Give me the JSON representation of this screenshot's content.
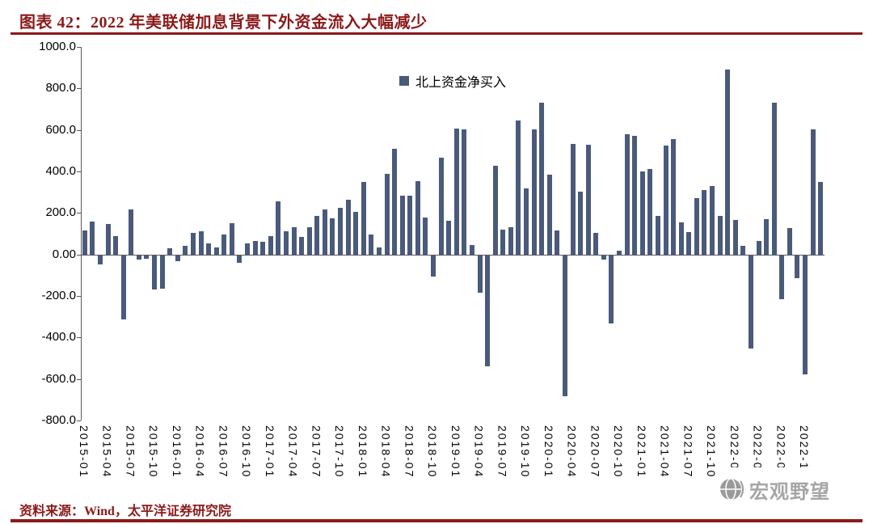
{
  "page": {
    "title": "图表 42：2022 年美联储加息背景下外资金流入大幅减少",
    "source": "资料来源：Wind，太平洋证券研究院",
    "watermark": "宏观野望"
  },
  "legend": {
    "label": "北上资金净买入"
  },
  "colors": {
    "accent": "#8B1A1A",
    "bar": "#4A5A7A",
    "axis": "#595959",
    "watermark_gray": "#A6A6A6"
  },
  "chart_data": {
    "type": "bar",
    "title": "图表 42：2022 年美联储加息背景下外资金流入大幅减少",
    "xlabel": "",
    "ylabel": "",
    "ylim": [
      -800,
      1000
    ],
    "ytick_values": [
      1000,
      800,
      600,
      400,
      200,
      0,
      -200,
      -400,
      -600,
      -800
    ],
    "ytick_labels": [
      "1000.0",
      "800.0",
      "600.0",
      "400.0",
      "200.0",
      "0.00",
      "-200.0",
      "-400.0",
      "-600.0",
      "-800.0"
    ],
    "xtick_every": 3,
    "grid": false,
    "legend_position": "top-center",
    "x": [
      "2015-01",
      "2015-02",
      "2015-03",
      "2015-04",
      "2015-05",
      "2015-06",
      "2015-07",
      "2015-08",
      "2015-09",
      "2015-10",
      "2015-11",
      "2015-12",
      "2016-01",
      "2016-02",
      "2016-03",
      "2016-04",
      "2016-05",
      "2016-06",
      "2016-07",
      "2016-08",
      "2016-09",
      "2016-10",
      "2016-11",
      "2016-12",
      "2017-01",
      "2017-02",
      "2017-03",
      "2017-04",
      "2017-05",
      "2017-06",
      "2017-07",
      "2017-08",
      "2017-09",
      "2017-10",
      "2017-11",
      "2017-12",
      "2018-01",
      "2018-02",
      "2018-03",
      "2018-04",
      "2018-05",
      "2018-06",
      "2018-07",
      "2018-08",
      "2018-09",
      "2018-10",
      "2018-11",
      "2018-12",
      "2019-01",
      "2019-02",
      "2019-03",
      "2019-04",
      "2019-05",
      "2019-06",
      "2019-07",
      "2019-08",
      "2019-09",
      "2019-10",
      "2019-11",
      "2019-12",
      "2020-01",
      "2020-02",
      "2020-03",
      "2020-04",
      "2020-05",
      "2020-06",
      "2020-07",
      "2020-08",
      "2020-09",
      "2020-10",
      "2020-11",
      "2020-12",
      "2021-01",
      "2021-02",
      "2021-03",
      "2021-04",
      "2021-05",
      "2021-06",
      "2021-07",
      "2021-08",
      "2021-09",
      "2021-10",
      "2021-11",
      "2021-12",
      "2022-01",
      "2022-02",
      "2022-03",
      "2022-04",
      "2022-05",
      "2022-06",
      "2022-07",
      "2022-08",
      "2022-09",
      "2022-10",
      "2022-11",
      "2022-12"
    ],
    "series": [
      {
        "name": "北上资金净买入",
        "values": [
          115,
          160,
          -45,
          145,
          90,
          -310,
          215,
          -20,
          -15,
          -165,
          -160,
          30,
          -30,
          40,
          105,
          110,
          55,
          35,
          95,
          150,
          -35,
          55,
          65,
          60,
          90,
          255,
          110,
          130,
          85,
          130,
          185,
          215,
          175,
          225,
          265,
          205,
          351,
          97,
          35,
          387,
          508,
          285,
          285,
          355,
          177,
          -103,
          465,
          161,
          607,
          604,
          44,
          -180,
          -537,
          426,
          120,
          130,
          647,
          320,
          604,
          730,
          384,
          116,
          -679,
          533,
          301,
          527,
          104,
          -21,
          -328,
          20,
          579,
          572,
          400,
          412,
          187,
          526,
          554,
          154,
          108,
          273,
          311,
          328,
          185,
          890,
          168,
          40,
          -451,
          63,
          169,
          730,
          -211,
          127,
          -112,
          -573,
          601,
          350
        ]
      }
    ]
  }
}
